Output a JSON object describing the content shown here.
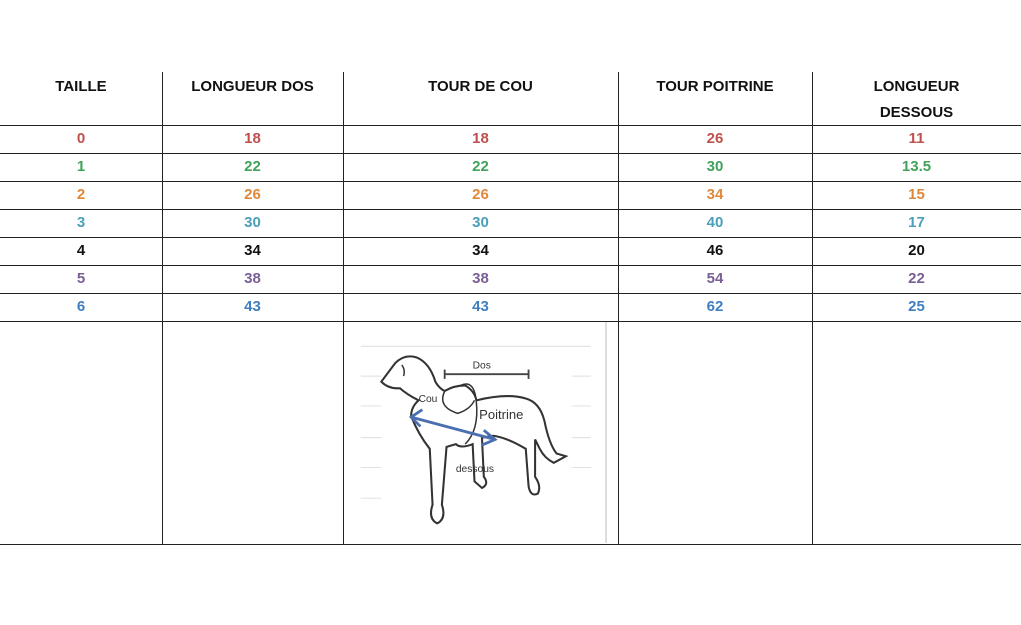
{
  "table": {
    "headers": [
      "TAILLE",
      "LONGUEUR DOS",
      "TOUR DE COU",
      "TOUR POITRINE",
      "LONGUEUR DESSOUS"
    ],
    "rows": [
      {
        "taille": "0",
        "dos": "18",
        "cou": "18",
        "poitrine": "26",
        "dessous": "11",
        "color": "#c0504d"
      },
      {
        "taille": "1",
        "dos": "22",
        "cou": "22",
        "poitrine": "30",
        "dessous": "13.5",
        "color": "#3fa35a"
      },
      {
        "taille": "2",
        "dos": "26",
        "cou": "26",
        "poitrine": "34",
        "dessous": "15",
        "color": "#e0883a"
      },
      {
        "taille": "3",
        "dos": "30",
        "cou": "30",
        "poitrine": "40",
        "dessous": "17",
        "color": "#4aa0b8"
      },
      {
        "taille": "4",
        "dos": "34",
        "cou": "34",
        "poitrine": "46",
        "dessous": "20",
        "color": "#111111"
      },
      {
        "taille": "5",
        "dos": "38",
        "cou": "38",
        "poitrine": "54",
        "dessous": "22",
        "color": "#7a5f96"
      },
      {
        "taille": "6",
        "dos": "43",
        "cou": "43",
        "poitrine": "62",
        "dessous": "25",
        "color": "#3f7fc0"
      }
    ]
  },
  "diagram": {
    "labels": {
      "dos": "Dos",
      "cou": "Cou",
      "poitrine": "Poitrine",
      "dessous": "dessous"
    },
    "arrow_color": "#4a6fb0"
  }
}
